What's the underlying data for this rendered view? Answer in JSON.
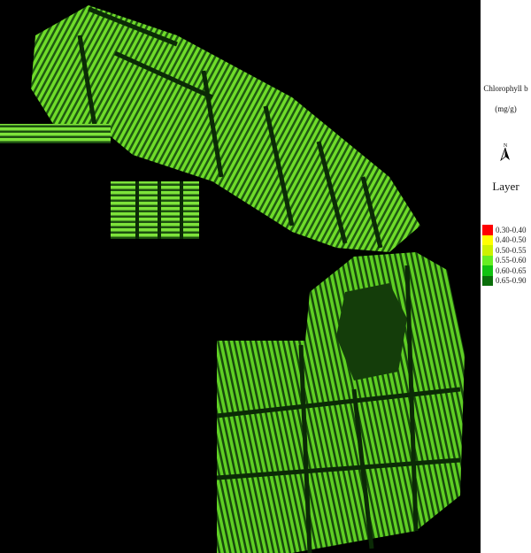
{
  "legend": {
    "title": "Chlorophyll b",
    "unit": "(mg/g)",
    "north_label": "N",
    "layer_label": "Layer",
    "classes": [
      {
        "label": "0.30-0.40",
        "color": "#ff0000"
      },
      {
        "label": "0.40-0.50",
        "color": "#ffff00"
      },
      {
        "label": "0.50-0.55",
        "color": "#ccf200"
      },
      {
        "label": "0.55-0.60",
        "color": "#66ee22"
      },
      {
        "label": "0.60-0.65",
        "color": "#11c211"
      },
      {
        "label": "0.65-0.90",
        "color": "#0a6e0a"
      }
    ]
  },
  "map": {
    "background": "#000000",
    "dominant_class": "0.55-0.60"
  }
}
